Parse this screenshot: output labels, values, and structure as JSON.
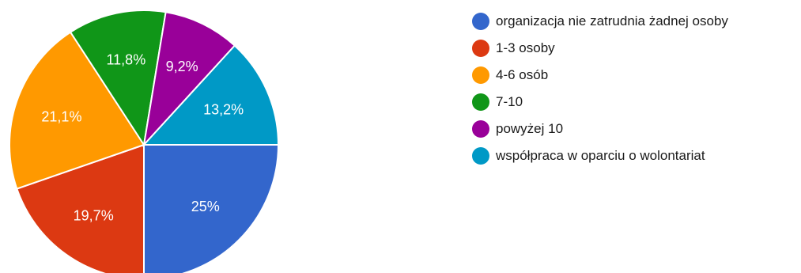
{
  "chart_data": {
    "type": "pie",
    "title": "",
    "legend_position": "right",
    "slices": [
      {
        "label": "organizacja nie zatrudnia żadnej osoby",
        "value": 25,
        "value_label": "25%",
        "color": "#3366cc"
      },
      {
        "label": "1-3 osoby",
        "value": 19.7,
        "value_label": "19,7%",
        "color": "#dc3912"
      },
      {
        "label": "4-6 osób",
        "value": 21.1,
        "value_label": "21,1%",
        "color": "#ff9900"
      },
      {
        "label": "7-10",
        "value": 11.8,
        "value_label": "11,8%",
        "color": "#109618"
      },
      {
        "label": "powyżej 10",
        "value": 9.2,
        "value_label": "9,2%",
        "color": "#990099"
      },
      {
        "label": "współpraca w oparciu o wolontariat",
        "value": 13.2,
        "value_label": "13,2%",
        "color": "#0099c6"
      }
    ]
  }
}
